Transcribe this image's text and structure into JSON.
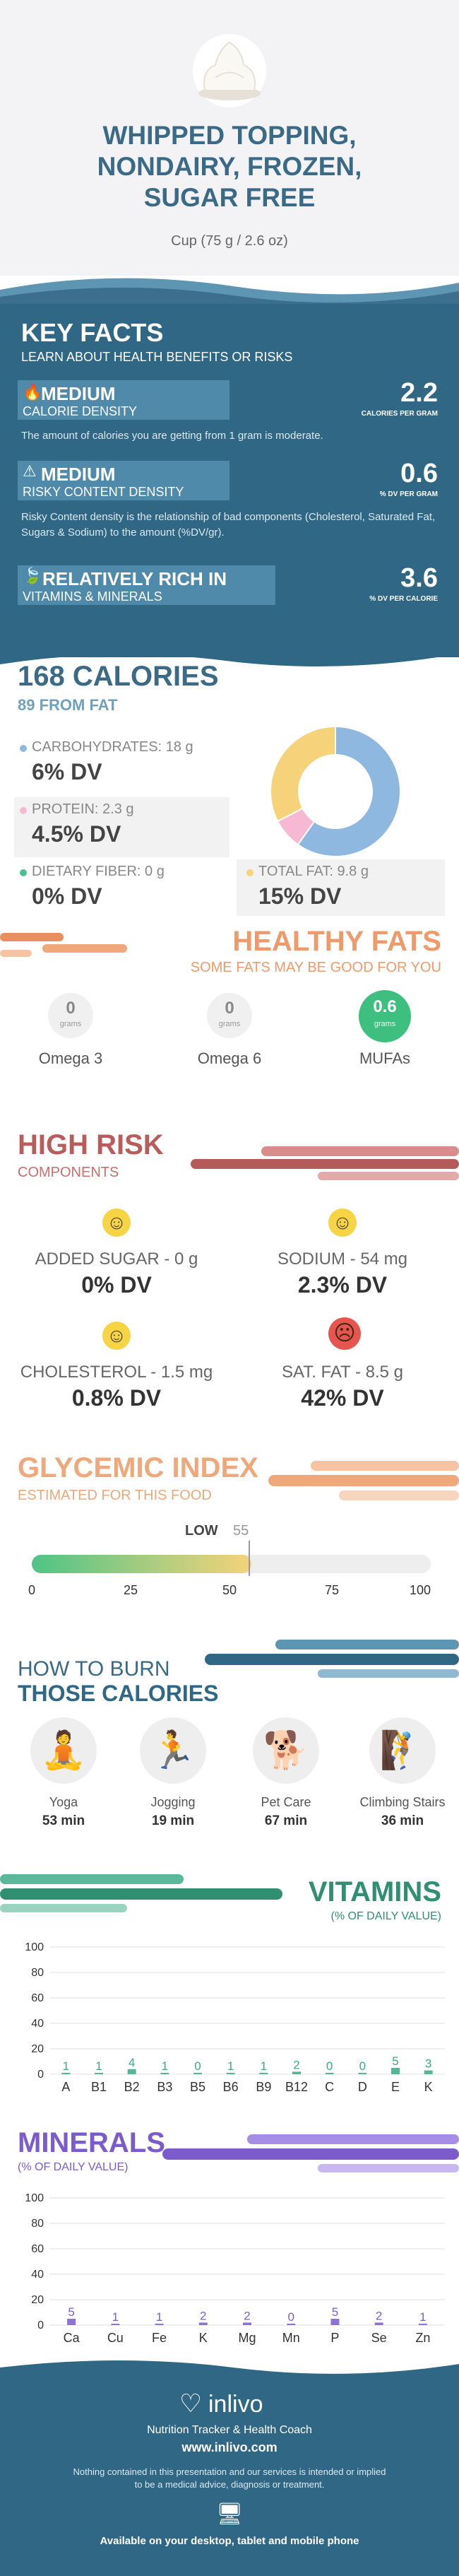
{
  "header": {
    "title": "WHIPPED TOPPING, NONDAIRY, FROZEN, SUGAR FREE",
    "serving": "Cup (75 g / 2.6 oz)"
  },
  "key_facts": {
    "title": "KEY FACTS",
    "subtitle": "LEARN ABOUT HEALTH BENEFITS OR RISKS",
    "calorie": {
      "level": "MEDIUM",
      "label": "CALORIE DENSITY",
      "value": "2.2",
      "unit": "CALORIES PER GRAM",
      "desc": "The amount of calories you are getting from 1 gram is moderate."
    },
    "risky": {
      "level": "MEDIUM",
      "label": "RISKY CONTENT DENSITY",
      "value": "0.6",
      "unit": "% DV PER GRAM",
      "desc": "Risky Content density is the relationship of bad components (Cholesterol, Saturated Fat, Sugars & Sodium) to the amount (%DV/gr)."
    },
    "vitamins": {
      "level": "RELATIVELY RICH  IN",
      "label": "VITAMINS & MINERALS",
      "value": "3.6",
      "unit": "% DV PER CALORIE"
    }
  },
  "calories": {
    "title": "168 CALORIES",
    "subtitle": "89 FROM FAT",
    "carbs": {
      "label": "CARBOHYDRATES: 18 g",
      "dv": "6% DV"
    },
    "protein": {
      "label": "PROTEIN: 2.3 g",
      "dv": "4.5% DV"
    },
    "fiber": {
      "label": "DIETARY FIBER: 0 g",
      "dv": "0% DV"
    },
    "fat": {
      "label": "TOTAL FAT: 9.8 g",
      "dv": "15% DV"
    },
    "colors": {
      "carbs": "#8fb8e0",
      "protein": "#f6b8d2",
      "fiber": "#4ac290",
      "fat": "#f6d37a"
    }
  },
  "chart_data": {
    "type": "pie",
    "labels": [
      "Carbohydrates",
      "Protein",
      "Total fat"
    ],
    "values": [
      18,
      2.3,
      9.8
    ]
  },
  "healthy_fats": {
    "title": "HEALTHY FATS",
    "subtitle": "SOME FATS MAY BE GOOD FOR YOU",
    "items": [
      {
        "value": "0",
        "unit": "grams",
        "name": "Omega 3"
      },
      {
        "value": "0",
        "unit": "grams",
        "name": "Omega 6"
      },
      {
        "value": "0.6",
        "unit": "grams",
        "name": "MUFAs"
      }
    ]
  },
  "high_risk": {
    "title": "HIGH RISK",
    "subtitle": "COMPONENTS",
    "items": [
      {
        "label": "ADDED SUGAR - 0 g",
        "dv": "0% DV"
      },
      {
        "label": "SODIUM - 54 mg",
        "dv": "2.3% DV"
      },
      {
        "label": "CHOLESTEROL - 1.5 mg",
        "dv": "0.8% DV"
      },
      {
        "label": "SAT. FAT - 8.5 g",
        "dv": "42% DV"
      }
    ]
  },
  "glycemic": {
    "title": "GLYCEMIC INDEX",
    "subtitle": "ESTIMATED FOR THIS FOOD",
    "level": "LOW",
    "value": "55",
    "fraction": 0.55,
    "ticks": [
      "0",
      "25",
      "50",
      "75",
      "100"
    ]
  },
  "burn": {
    "title1": "HOW TO BURN",
    "title2": "THOSE CALORIES",
    "items": [
      {
        "name": "Yoga",
        "time": "53 min"
      },
      {
        "name": "Jogging",
        "time": "19 min"
      },
      {
        "name": "Pet Care",
        "time": "67 min"
      },
      {
        "name": "Climbing Stairs",
        "time": "36 min"
      }
    ]
  },
  "vitamins": {
    "title": "VITAMINS",
    "subtitle": "(% OF DAILY VALUE)",
    "yticks": [
      "100",
      "80",
      "60",
      "40",
      "20",
      "0"
    ],
    "bars": [
      {
        "name": "A",
        "value": 1
      },
      {
        "name": "B1",
        "value": 1
      },
      {
        "name": "B2",
        "value": 4
      },
      {
        "name": "B3",
        "value": 1
      },
      {
        "name": "B5",
        "value": 0
      },
      {
        "name": "B6",
        "value": 1
      },
      {
        "name": "B9",
        "value": 1
      },
      {
        "name": "B12",
        "value": 2
      },
      {
        "name": "C",
        "value": 0
      },
      {
        "name": "D",
        "value": 0
      },
      {
        "name": "E",
        "value": 5
      },
      {
        "name": "K",
        "value": 3
      }
    ]
  },
  "minerals": {
    "title": "MINERALS",
    "subtitle": "(% OF DAILY VALUE)",
    "yticks": [
      "100",
      "80",
      "60",
      "40",
      "20",
      "0"
    ],
    "bars": [
      {
        "name": "Ca",
        "value": 5
      },
      {
        "name": "Cu",
        "value": 1
      },
      {
        "name": "Fe",
        "value": 1
      },
      {
        "name": "K",
        "value": 2
      },
      {
        "name": "Mg",
        "value": 2
      },
      {
        "name": "Mn",
        "value": 0
      },
      {
        "name": "P",
        "value": 5
      },
      {
        "name": "Se",
        "value": 2
      },
      {
        "name": "Zn",
        "value": 1
      }
    ]
  },
  "footer": {
    "brand": "inlivo",
    "tagline": "Nutrition Tracker & Health Coach",
    "url": "www.inlivo.com",
    "disclaimer1": "Nothing contained in this presentation and our services is intended or implied",
    "disclaimer2": "to be a medical advice, diagnosis or treatment.",
    "available": "Available on your desktop, tablet and mobile phone"
  }
}
